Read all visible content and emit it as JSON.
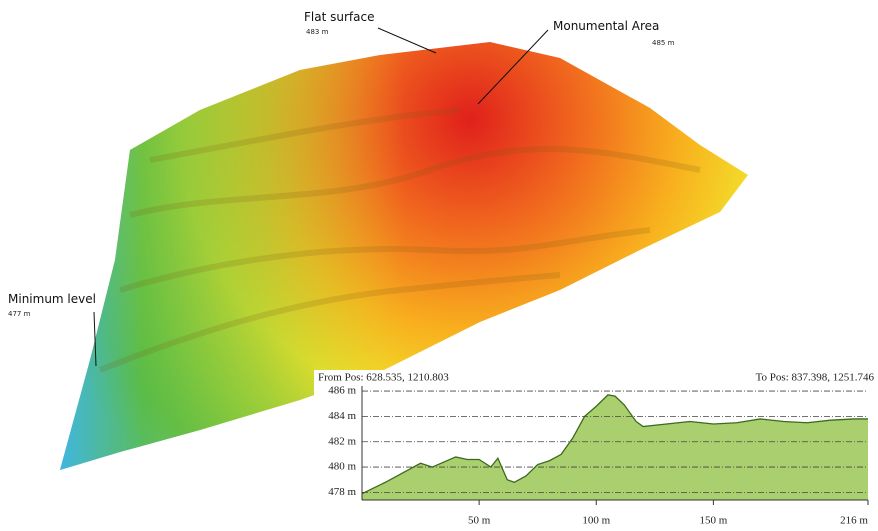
{
  "annotations": [
    {
      "label": "Flat surface",
      "elevation": "483 m"
    },
    {
      "label": "Monumental Area",
      "elevation": "485 m"
    },
    {
      "label": "Minimum level",
      "elevation": "477 m"
    }
  ],
  "chart_data": {
    "type": "area",
    "from_label": "From Pos: 628.535, 1210.803",
    "to_label": "To Pos: 837.398, 1251.746",
    "x": [
      0,
      10,
      20,
      25,
      30,
      40,
      45,
      50,
      55,
      58,
      62,
      65,
      70,
      75,
      80,
      85,
      90,
      95,
      100,
      105,
      108,
      112,
      117,
      120,
      125,
      130,
      140,
      150,
      160,
      170,
      180,
      190,
      200,
      210,
      216
    ],
    "values": [
      477.9,
      478.8,
      479.8,
      480.3,
      480.0,
      480.8,
      480.6,
      480.6,
      480.0,
      480.7,
      479.0,
      478.8,
      479.3,
      480.2,
      480.5,
      481.0,
      482.3,
      484.0,
      484.8,
      485.7,
      485.6,
      484.9,
      483.6,
      483.2,
      483.3,
      483.4,
      483.6,
      483.4,
      483.5,
      483.8,
      483.6,
      483.5,
      483.7,
      483.8,
      483.8
    ],
    "color": "#a9cf6f",
    "xlim": [
      0,
      216
    ],
    "xticks": [
      {
        "value": 50,
        "label": "50 m"
      },
      {
        "value": 100,
        "label": "100 m"
      },
      {
        "value": 150,
        "label": "150 m"
      },
      {
        "value": 216,
        "label": "216 m"
      }
    ],
    "ylim": [
      477.4,
      486.4
    ],
    "yticks": [
      {
        "value": 478,
        "label": "478 m"
      },
      {
        "value": 480,
        "label": "480 m"
      },
      {
        "value": 482,
        "label": "482 m"
      },
      {
        "value": 484,
        "label": "484 m"
      },
      {
        "value": 486,
        "label": "486 m"
      }
    ],
    "grid": true
  }
}
